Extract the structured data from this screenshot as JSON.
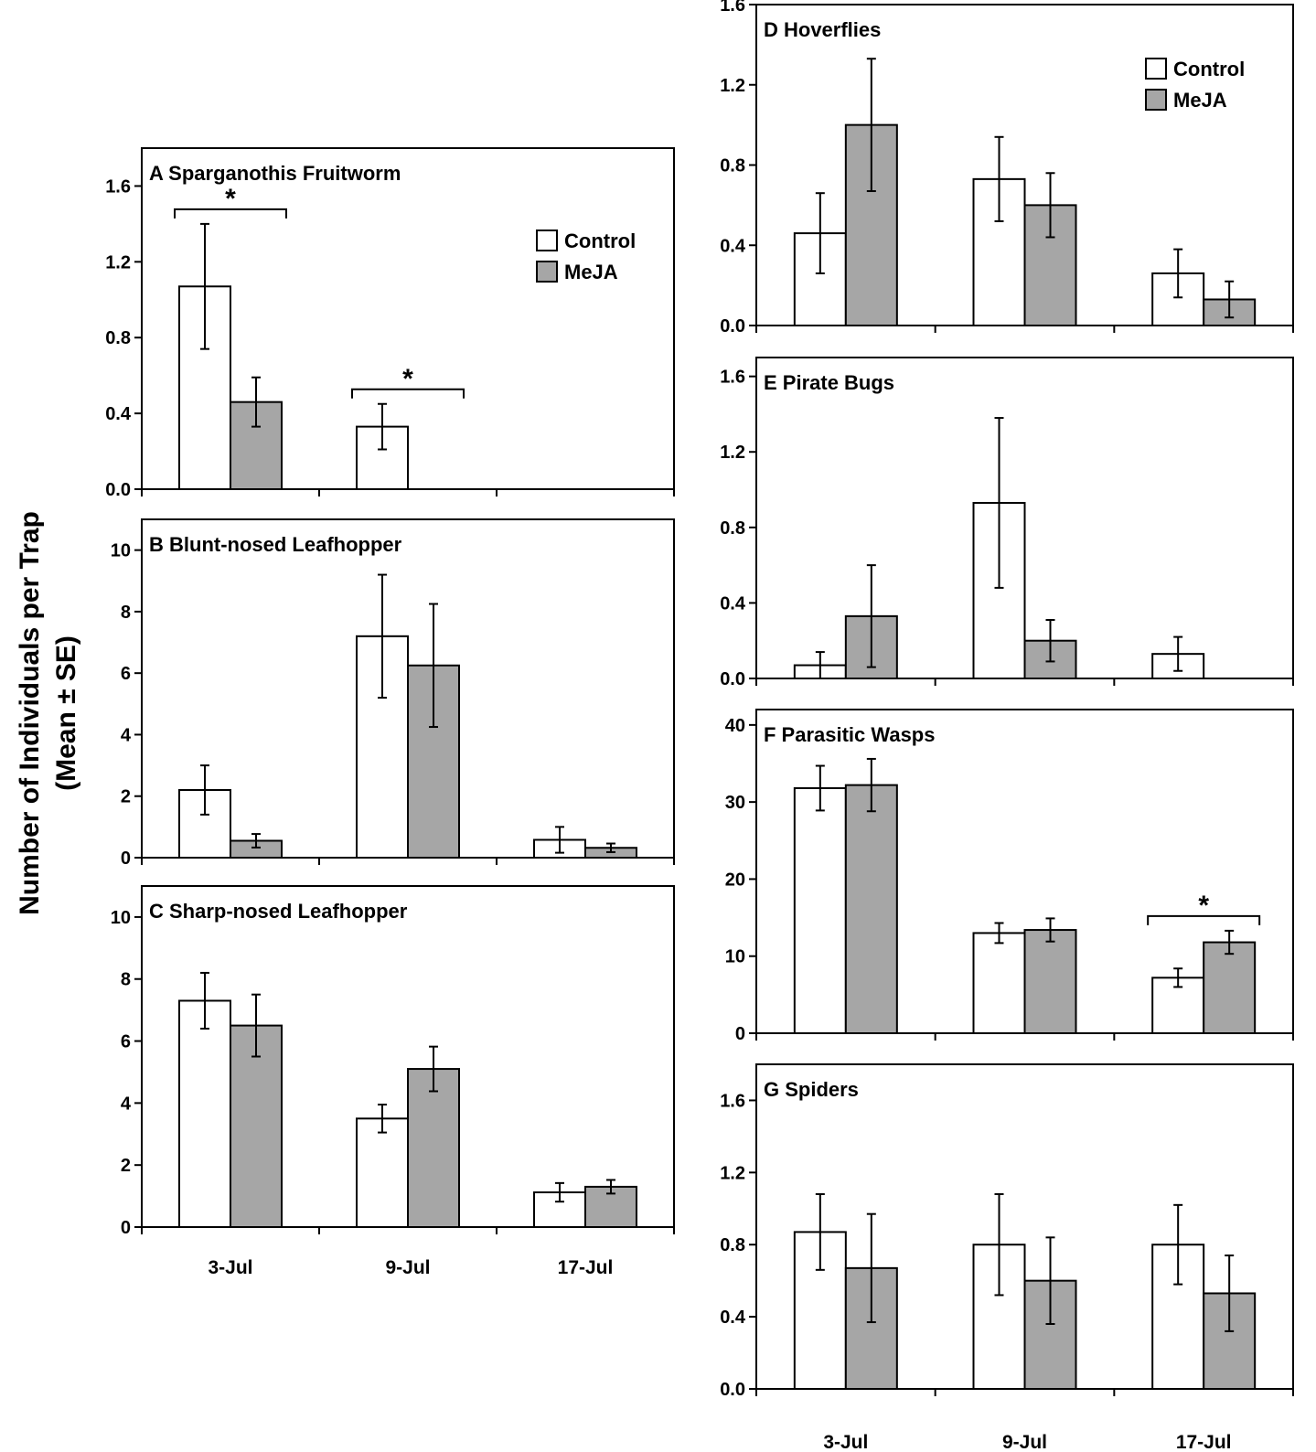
{
  "figure": {
    "y_label_line1": "Number of Individuals per Trap",
    "y_label_line2": "(Mean ± SE)",
    "categories": [
      "3-Jul",
      "9-Jul",
      "17-Jul"
    ],
    "legend": [
      "Control",
      "MeJA"
    ],
    "colors": {
      "control": "#ffffff",
      "meja": "#a6a6a6",
      "axis": "#000000"
    }
  },
  "chart_data": [
    {
      "panel": "A",
      "title": "Sparganothis Fruitworm",
      "type": "bar",
      "categories": [
        "3-Jul",
        "9-Jul",
        "17-Jul"
      ],
      "ylim": [
        0,
        1.8
      ],
      "yticks": [
        0.0,
        0.4,
        0.8,
        1.2,
        1.6
      ],
      "ytick_labels": [
        "0.0",
        "0.4",
        "0.8",
        "1.2",
        "1.6"
      ],
      "series": [
        {
          "name": "Control",
          "values": [
            1.07,
            0.33,
            0
          ],
          "se": [
            0.33,
            0.12,
            0
          ]
        },
        {
          "name": "MeJA",
          "values": [
            0.46,
            0,
            0
          ],
          "se": [
            0.13,
            0,
            0
          ]
        }
      ],
      "significance": [
        {
          "category": "3-Jul",
          "label": "*"
        },
        {
          "category": "9-Jul",
          "label": "*"
        }
      ],
      "legend_shown": true
    },
    {
      "panel": "B",
      "title": "Blunt-nosed Leafhopper",
      "type": "bar",
      "categories": [
        "3-Jul",
        "9-Jul",
        "17-Jul"
      ],
      "ylim": [
        0,
        11
      ],
      "yticks": [
        0,
        2,
        4,
        6,
        8,
        10
      ],
      "ytick_labels": [
        "0",
        "2",
        "4",
        "6",
        "8",
        "10"
      ],
      "series": [
        {
          "name": "Control",
          "values": [
            2.2,
            7.2,
            0.58
          ],
          "se": [
            0.8,
            2.0,
            0.42
          ]
        },
        {
          "name": "MeJA",
          "values": [
            0.55,
            6.25,
            0.32
          ],
          "se": [
            0.22,
            2.0,
            0.14
          ]
        }
      ],
      "significance": [],
      "legend_shown": false
    },
    {
      "panel": "C",
      "title": "Sharp-nosed Leafhopper",
      "type": "bar",
      "categories": [
        "3-Jul",
        "9-Jul",
        "17-Jul"
      ],
      "ylim": [
        0,
        11
      ],
      "yticks": [
        0,
        2,
        4,
        6,
        8,
        10
      ],
      "ytick_labels": [
        "0",
        "2",
        "4",
        "6",
        "8",
        "10"
      ],
      "series": [
        {
          "name": "Control",
          "values": [
            7.3,
            3.5,
            1.12
          ],
          "se": [
            0.9,
            0.45,
            0.3
          ]
        },
        {
          "name": "MeJA",
          "values": [
            6.5,
            5.1,
            1.3
          ],
          "se": [
            1.0,
            0.72,
            0.22
          ]
        }
      ],
      "significance": [],
      "legend_shown": false
    },
    {
      "panel": "D",
      "title": "Hoverflies",
      "type": "bar",
      "categories": [
        "3-Jul",
        "9-Jul",
        "17-Jul"
      ],
      "ylim": [
        0,
        1.6
      ],
      "yticks": [
        0.0,
        0.4,
        0.8,
        1.2,
        1.6
      ],
      "ytick_labels": [
        "0.0",
        "0.4",
        "0.8",
        "1.2",
        "1.6"
      ],
      "series": [
        {
          "name": "Control",
          "values": [
            0.46,
            0.73,
            0.26
          ],
          "se": [
            0.2,
            0.21,
            0.12
          ]
        },
        {
          "name": "MeJA",
          "values": [
            1.0,
            0.6,
            0.13
          ],
          "se": [
            0.33,
            0.16,
            0.09
          ]
        }
      ],
      "significance": [],
      "legend_shown": true
    },
    {
      "panel": "E",
      "title": "Pirate Bugs",
      "type": "bar",
      "categories": [
        "3-Jul",
        "9-Jul",
        "17-Jul"
      ],
      "ylim": [
        0,
        1.7
      ],
      "yticks": [
        0.0,
        0.4,
        0.8,
        1.2,
        1.6
      ],
      "ytick_labels": [
        "0.0",
        "0.4",
        "0.8",
        "1.2",
        "1.6"
      ],
      "series": [
        {
          "name": "Control",
          "values": [
            0.07,
            0.93,
            0.13
          ],
          "se": [
            0.07,
            0.45,
            0.09
          ]
        },
        {
          "name": "MeJA",
          "values": [
            0.33,
            0.2,
            0
          ],
          "se": [
            0.27,
            0.11,
            0
          ]
        }
      ],
      "significance": [],
      "legend_shown": false
    },
    {
      "panel": "F",
      "title": "Parasitic Wasps",
      "type": "bar",
      "categories": [
        "3-Jul",
        "9-Jul",
        "17-Jul"
      ],
      "ylim": [
        0,
        42
      ],
      "yticks": [
        0,
        10,
        20,
        30,
        40
      ],
      "ytick_labels": [
        "0",
        "10",
        "20",
        "30",
        "40"
      ],
      "series": [
        {
          "name": "Control",
          "values": [
            31.8,
            13.0,
            7.2
          ],
          "se": [
            2.9,
            1.3,
            1.2
          ]
        },
        {
          "name": "MeJA",
          "values": [
            32.2,
            13.4,
            11.8
          ],
          "se": [
            3.4,
            1.5,
            1.5
          ]
        }
      ],
      "significance": [
        {
          "category": "17-Jul",
          "label": "*"
        }
      ],
      "legend_shown": false
    },
    {
      "panel": "G",
      "title": "Spiders",
      "type": "bar",
      "categories": [
        "3-Jul",
        "9-Jul",
        "17-Jul"
      ],
      "ylim": [
        0,
        1.8
      ],
      "yticks": [
        0.0,
        0.4,
        0.8,
        1.2,
        1.6
      ],
      "ytick_labels": [
        "0.0",
        "0.4",
        "0.8",
        "1.2",
        "1.6"
      ],
      "series": [
        {
          "name": "Control",
          "values": [
            0.87,
            0.8,
            0.8
          ],
          "se": [
            0.21,
            0.28,
            0.22
          ]
        },
        {
          "name": "MeJA",
          "values": [
            0.67,
            0.6,
            0.53
          ],
          "se": [
            0.3,
            0.24,
            0.21
          ]
        }
      ],
      "significance": [],
      "legend_shown": false
    }
  ]
}
